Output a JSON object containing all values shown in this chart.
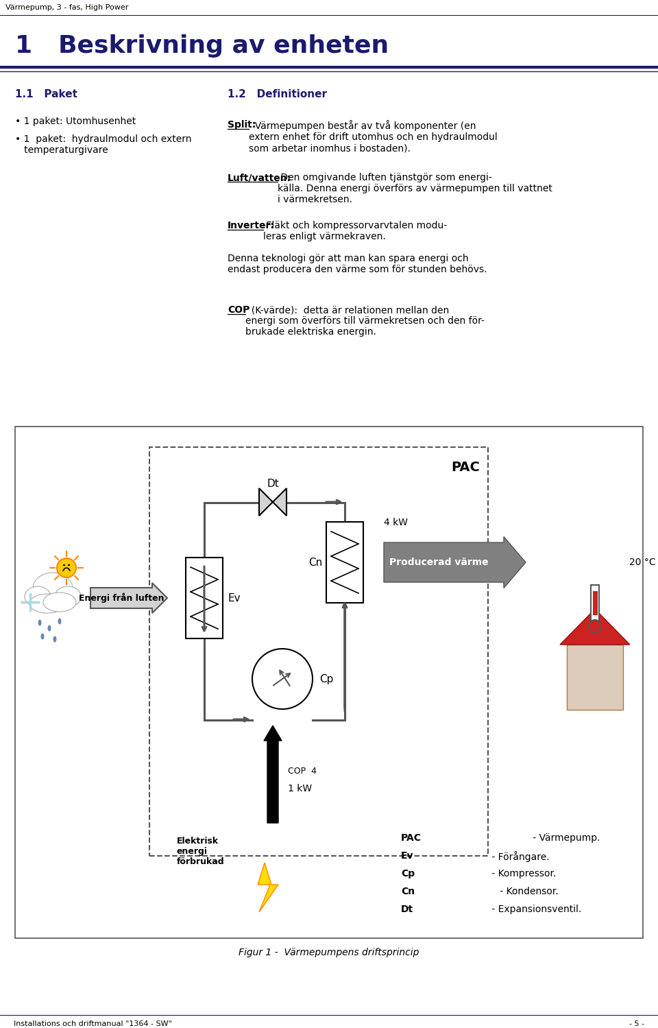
{
  "page_title_small": "Värmepump, 3 - fas, High Power",
  "section_title": "1   Beskrivning av enheten",
  "subtitle1": "1.1   Paket",
  "subtitle2": "1.2   Definitioner",
  "bullet1": "• 1 paket: Utomhusenhet",
  "bullet2": "• 1  paket:  hydraulmodul och extern\n   temperaturgivare",
  "split_label": "Split:",
  "split_text": "  Värmepumpen består av två komponenter (en\nextern enhet för drift utomhus och en hydraulmodul\nsom arbetar inomhus i bostaden).",
  "luft_label": "Luft/vatten:",
  "luft_text": " Den omgivande luften tjänstgör som energi-\nkälla. Denna energi överförs av värmepumpen till vattnet\ni värmekretsen.",
  "inverter_label": "Inverter:",
  "inverter_text": " Fläkt och kompressorvarvtalen modu-\nleras enligt värmekraven.",
  "denna_text": "Denna teknologi gör att man kan spara energi och\nendast producera den värme som för stunden behövs.",
  "cop_label": "COP",
  "cop_text": "  (K-värde):  detta är relationen mellan den\nenergi som överförs till värmekretsen och den för-\nbrukade elektriska energin.",
  "fig_caption": "Figur 1 -  Värmepumpens driftsprincip",
  "footer_left": "Installations och driftmanual \"1364 - SW\"",
  "footer_right": "- 5 -",
  "diagram_labels": {
    "PAC": "PAC",
    "Dt": "Dt",
    "Ev": "Ev",
    "Cp": "Cp",
    "Cn": "Cn",
    "energi_fran_luften": "Energi från luften",
    "producerad_varme": "Producerad värme",
    "kW4": "4 kW",
    "temp20": "20 °C",
    "COP4": "COP  4",
    "kW1": "1 kW",
    "elektrisk": "Elektrisk\nenergi\nförbrukad",
    "legend_PAC": "PAC - Värmepump.",
    "legend_Ev": "Ev - Förångare.",
    "legend_Cp": "Cp - Kompressor.",
    "legend_Cn": "Cn - Kondensor.",
    "legend_Dt": "Dt - Expansionsventil."
  },
  "colors": {
    "dark_blue": "#1a1a6e",
    "black": "#000000",
    "white": "#ffffff",
    "light_gray": "#d3d3d3",
    "mid_gray": "#aaaaaa",
    "gray": "#808080",
    "dark_gray": "#555555",
    "producerad_bg": "#808080",
    "producerad_text": "#ffffff",
    "house_red": "#cc2222",
    "house_wall": "#ddccbb",
    "house_brown": "#aa7744",
    "thermometer_red": "#cc2222",
    "sun_yellow": "#ffcc00",
    "sun_orange": "#ff8800",
    "rain_blue": "#6688bb",
    "lightning_yellow": "#ffdd00",
    "lightning_orange": "#ff8800"
  }
}
